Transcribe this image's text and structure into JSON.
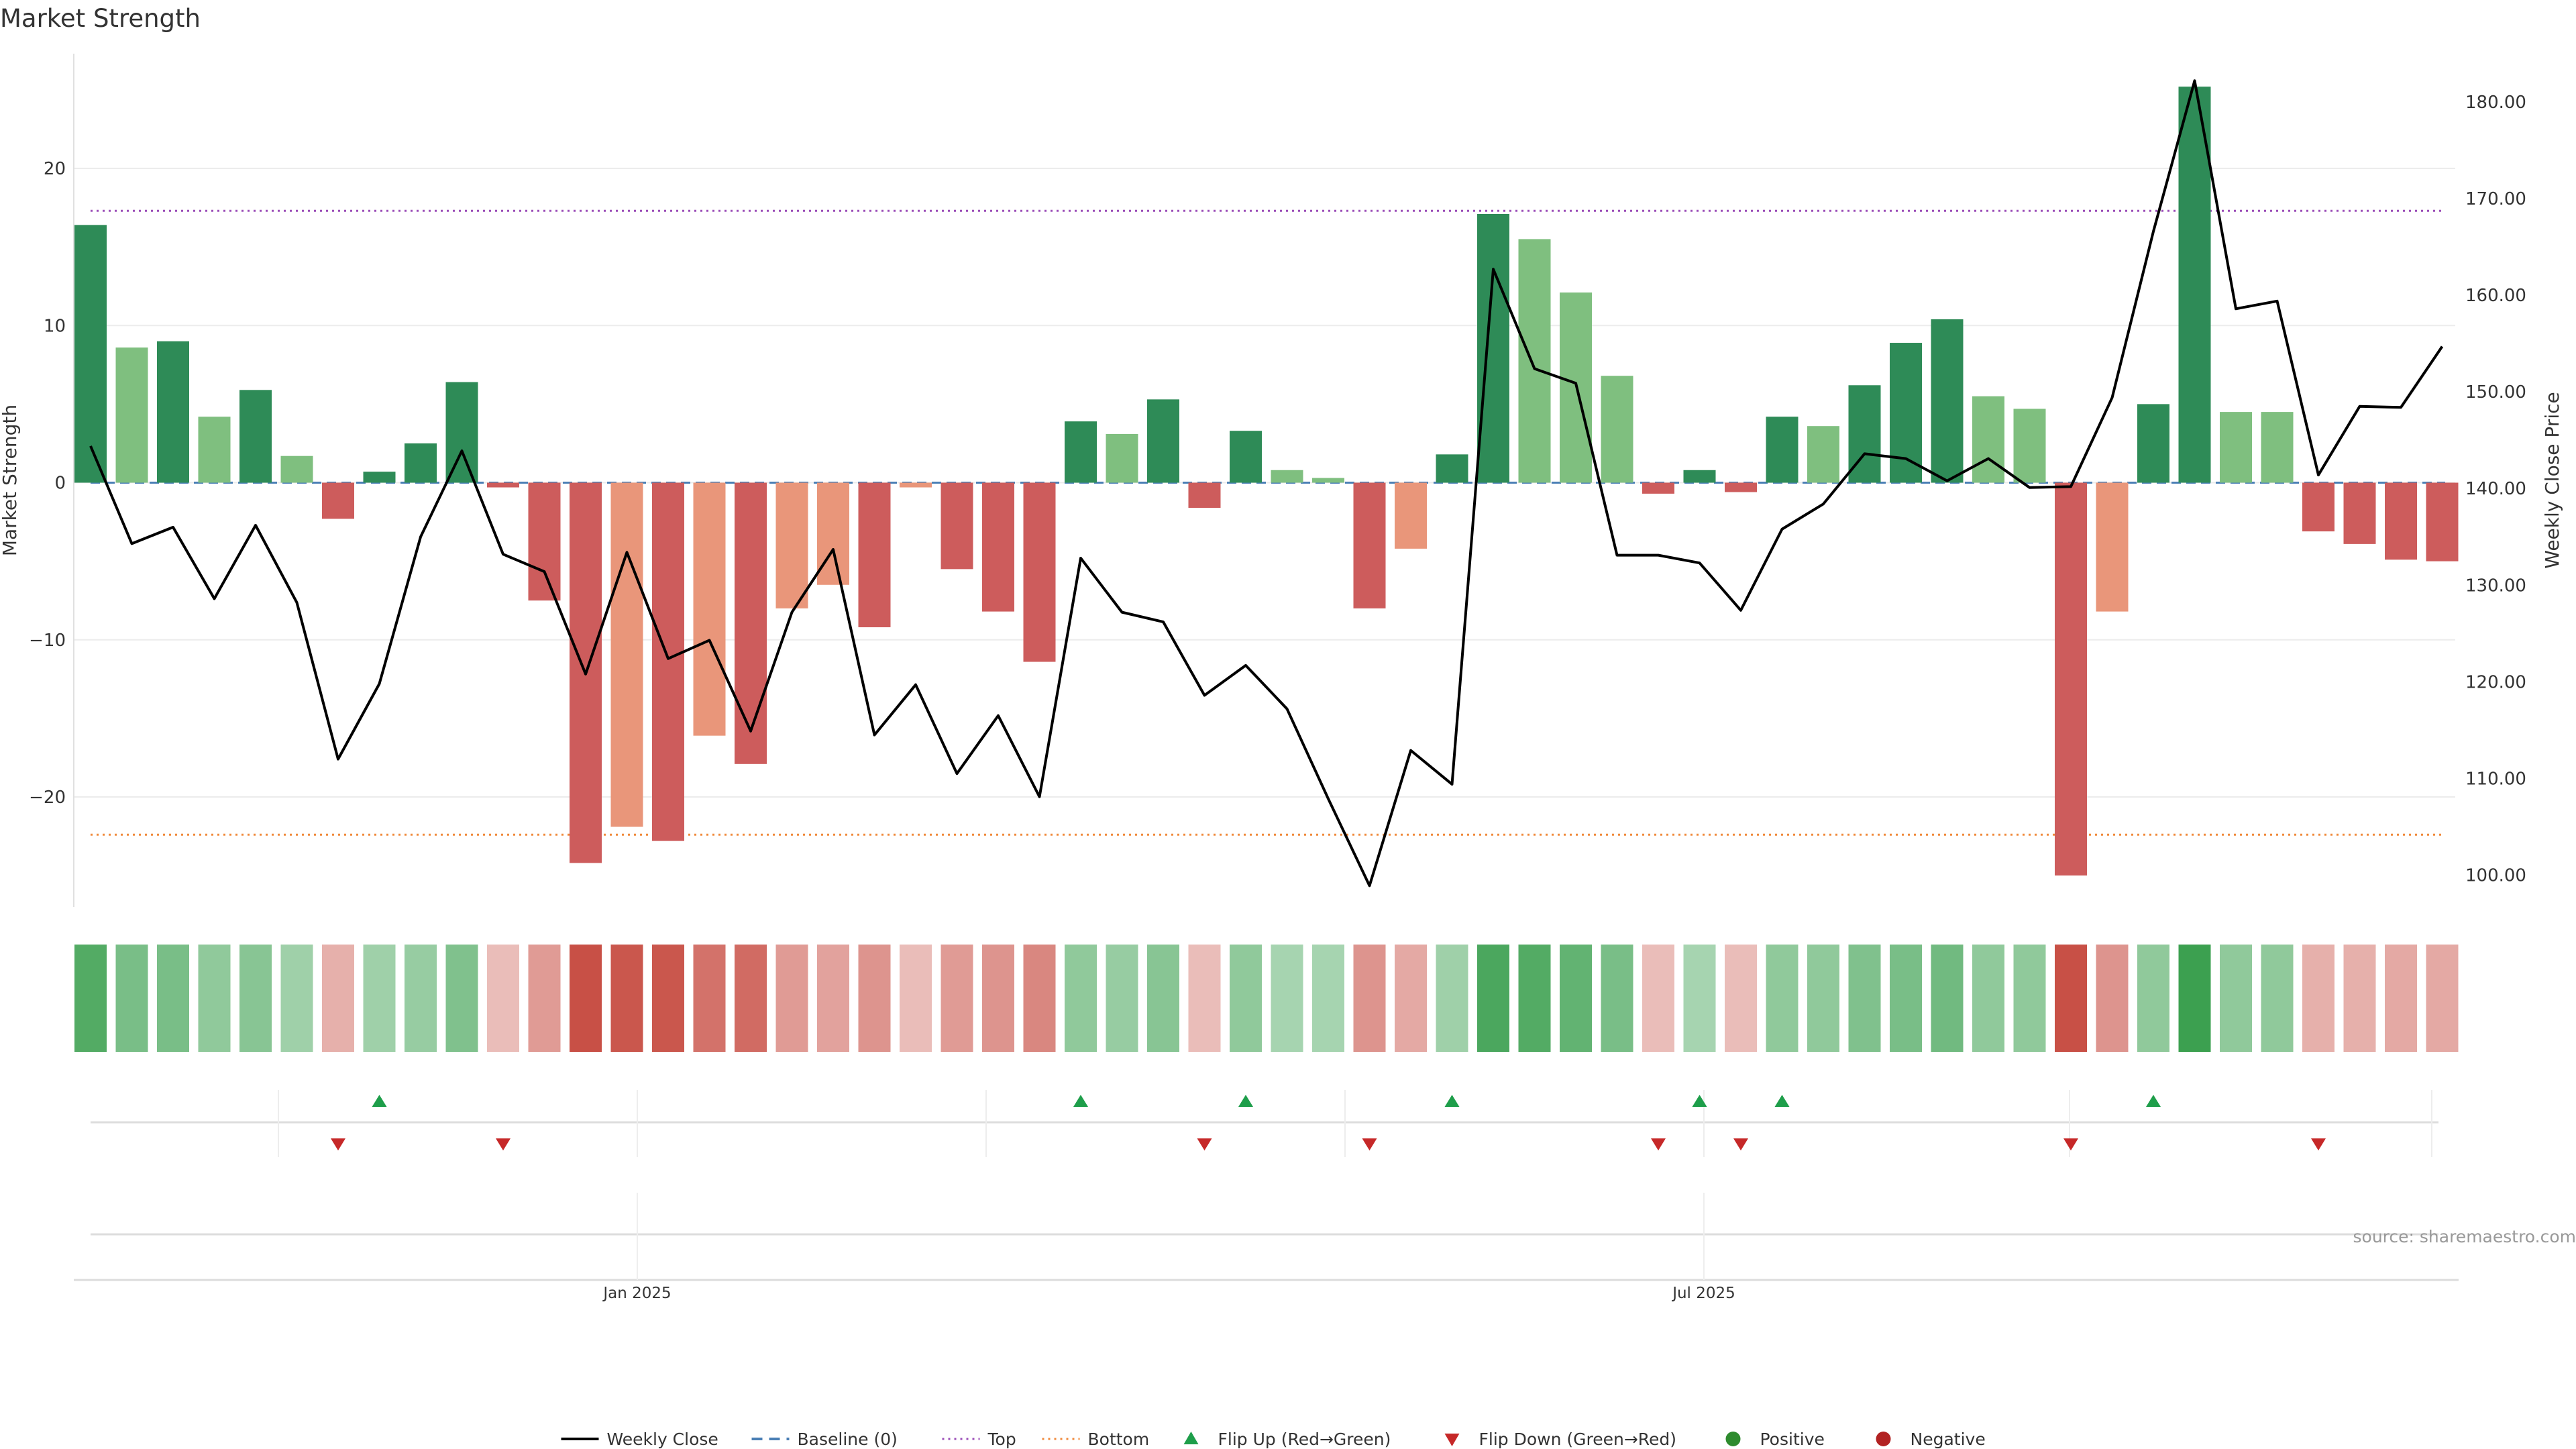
{
  "chart_data": {
    "type": "bar",
    "title": "Market Strength",
    "ylabel_left": "Market Strength",
    "ylabel_right": "Weekly Close Price",
    "source": "source: sharemaestro.com",
    "x_tick_labels": [
      "Jan 2025",
      "Jul 2025"
    ],
    "y_left": {
      "range": [
        -27,
        27.3
      ],
      "ticks": [
        -20,
        -10,
        0,
        10,
        20
      ],
      "tick_labels": [
        "−20",
        "−10",
        "0",
        "10",
        "20"
      ]
    },
    "y_right": {
      "range": [
        96.7,
        185
      ],
      "ticks": [
        100,
        110,
        120,
        130,
        140,
        150,
        160,
        170,
        180
      ],
      "tick_labels": [
        "100.00",
        "110.00",
        "120.00",
        "130.00",
        "140.00",
        "150.00",
        "160.00",
        "170.00",
        "180.00"
      ]
    },
    "grid": true,
    "reference_lines": {
      "top": 17.3,
      "bottom": -22.4,
      "baseline": 0
    },
    "legend": {
      "position": "bottom-center",
      "items": [
        {
          "label": "Weekly Close",
          "kind": "solid-line",
          "color": "#000000"
        },
        {
          "label": "Baseline (0)",
          "kind": "dashed-line",
          "color": "#4a7fb5"
        },
        {
          "label": "Top",
          "kind": "dotted-line",
          "color": "#9c4fb8"
        },
        {
          "label": "Bottom",
          "kind": "dotted-line",
          "color": "#f08a3c"
        },
        {
          "label": "Flip Up (Red→Green)",
          "kind": "triangle-up",
          "color": "#1e9e4a"
        },
        {
          "label": "Flip Down (Green→Red)",
          "kind": "triangle-down",
          "color": "#c62828"
        },
        {
          "label": "Positive",
          "kind": "dot",
          "color": "#2e8b2e"
        },
        {
          "label": "Negative",
          "kind": "dot",
          "color": "#b22222"
        }
      ]
    },
    "strength_values": [
      16.4,
      8.6,
      9.0,
      4.2,
      5.9,
      1.7,
      -2.3,
      0.7,
      2.5,
      6.4,
      -0.3,
      -7.5,
      -24.2,
      -21.9,
      -22.8,
      -16.1,
      -17.9,
      -8.0,
      -6.5,
      -9.2,
      -0.3,
      -5.5,
      -8.2,
      -11.4,
      3.9,
      3.1,
      5.3,
      -1.6,
      3.3,
      0.8,
      0.3,
      -8.0,
      -4.2,
      1.8,
      17.1,
      15.5,
      12.1,
      6.8,
      -0.7,
      0.8,
      -0.6,
      4.2,
      3.6,
      6.2,
      8.9,
      10.4,
      5.5,
      4.7,
      -25.0,
      -8.2,
      5.0,
      25.2,
      4.5,
      4.5,
      -3.1,
      -3.9,
      -4.9,
      -5.0
    ],
    "bar_shades": [
      "dark",
      "light",
      "dark",
      "light",
      "dark",
      "light",
      "dark",
      "dark",
      "dark",
      "dark",
      "dark",
      "dark",
      "dark",
      "light",
      "dark",
      "light",
      "dark",
      "light",
      "light",
      "dark",
      "light",
      "dark",
      "dark",
      "dark",
      "dark",
      "light",
      "dark",
      "dark",
      "dark",
      "light",
      "light",
      "dark",
      "light",
      "dark",
      "dark",
      "light",
      "light",
      "light",
      "dark",
      "dark",
      "dark",
      "dark",
      "light",
      "dark",
      "dark",
      "dark",
      "light",
      "light",
      "dark",
      "light",
      "dark",
      "dark",
      "light",
      "light",
      "dark",
      "dark",
      "dark",
      "dark"
    ],
    "weekly_close": [
      144.4,
      134.3,
      136.0,
      128.6,
      136.2,
      128.2,
      112.0,
      119.8,
      135.0,
      143.9,
      133.2,
      131.4,
      120.8,
      133.4,
      122.4,
      124.3,
      114.9,
      127.2,
      133.7,
      114.5,
      119.7,
      110.5,
      116.5,
      108.1,
      132.8,
      127.2,
      126.2,
      118.6,
      121.7,
      117.2,
      107.9,
      98.9,
      112.9,
      109.4,
      162.7,
      152.4,
      150.9,
      133.1,
      133.1,
      132.3,
      127.4,
      135.8,
      138.4,
      143.6,
      143.1,
      140.8,
      143.1,
      140.1,
      140.2,
      149.4,
      166.6,
      182.2,
      158.6,
      159.4,
      141.4,
      148.5,
      148.4,
      154.7
    ],
    "heat_cells": [
      0.85,
      0.6,
      0.6,
      0.45,
      0.5,
      0.35,
      -0.3,
      0.35,
      0.4,
      0.55,
      -0.2,
      -0.45,
      -1.0,
      -0.95,
      -0.95,
      -0.75,
      -0.8,
      -0.45,
      -0.4,
      -0.5,
      -0.2,
      -0.45,
      -0.5,
      -0.6,
      0.45,
      0.4,
      0.5,
      -0.2,
      0.45,
      0.3,
      0.3,
      -0.5,
      -0.35,
      0.35,
      0.9,
      0.85,
      0.75,
      0.6,
      -0.2,
      0.3,
      -0.2,
      0.45,
      0.45,
      0.55,
      0.6,
      0.65,
      0.45,
      0.45,
      -1.0,
      -0.5,
      0.45,
      1.0,
      0.45,
      0.45,
      -0.3,
      -0.3,
      -0.35,
      -0.35
    ],
    "flip_up_weeks": [
      7,
      24,
      28,
      33,
      39,
      41,
      50
    ],
    "flip_down_weeks": [
      6,
      10,
      27,
      31,
      38,
      40,
      48,
      54
    ]
  },
  "colors": {
    "pos_dark": "#2e8b57",
    "pos_light": "#7fbf7f",
    "neg_dark": "#cd5c5c",
    "neg_light": "#e9967a",
    "line": "#000000",
    "top_line": "#9c4fb8",
    "bottom_line": "#f08a3c",
    "baseline": "#4a7fb5",
    "grid": "#ececec",
    "flip_up": "#1e9e4a",
    "flip_down": "#c62828"
  }
}
